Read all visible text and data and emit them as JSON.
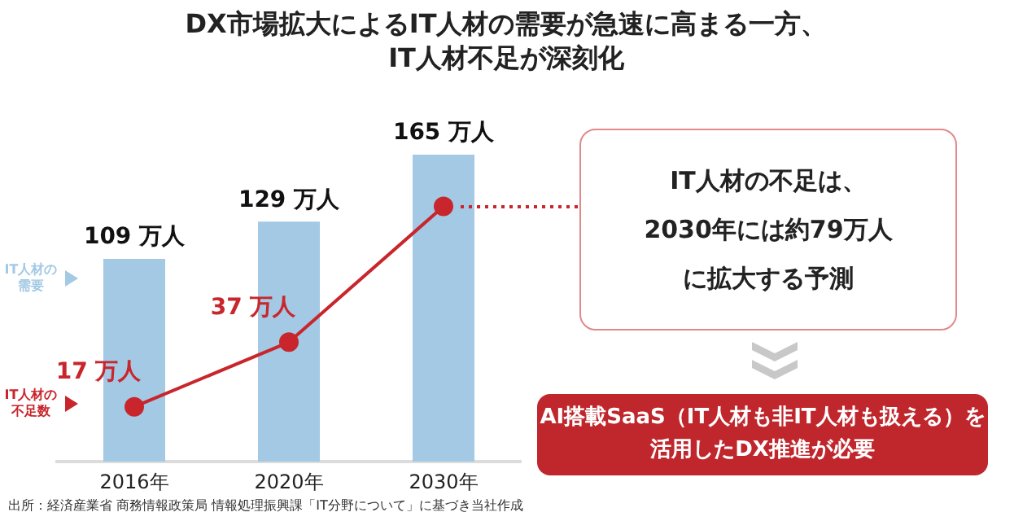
{
  "chart_data": {
    "type": "bar",
    "title": "DX市場拡大によるIT人材の需要が急速に高まる一方、IT人材不足が深刻化",
    "categories": [
      "2016年",
      "2020年",
      "2030年"
    ],
    "series": [
      {
        "name": "IT人材の需要",
        "color": "#a3c9e4",
        "values": [
          109,
          129,
          165
        ],
        "value_labels": [
          "109 万人",
          "129 万人",
          "165 万人"
        ]
      },
      {
        "name": "IT人材の不足数",
        "type": "line",
        "axis": "y2",
        "color": "#c8262c",
        "values": [
          17,
          37,
          79
        ],
        "value_labels": [
          "17 万人",
          "37 万人",
          null
        ]
      }
    ],
    "ylim": [
      0,
      165
    ],
    "y2lim": [
      0,
      95
    ],
    "marker": "circle",
    "line_style": "solid",
    "legend": "left",
    "grid": false,
    "tick_labels": "x",
    "annotations": [
      "IT人材の不足は、2030年には約79万人に拡大する予測",
      "AI搭載SaaS（IT人材も非IT人材も扱える）を活用したDX推進が必要",
      "出所：経済産業省 商務情報政策局 情報処理振興課「IT分野について」に基づき当社作成"
    ]
  }
}
